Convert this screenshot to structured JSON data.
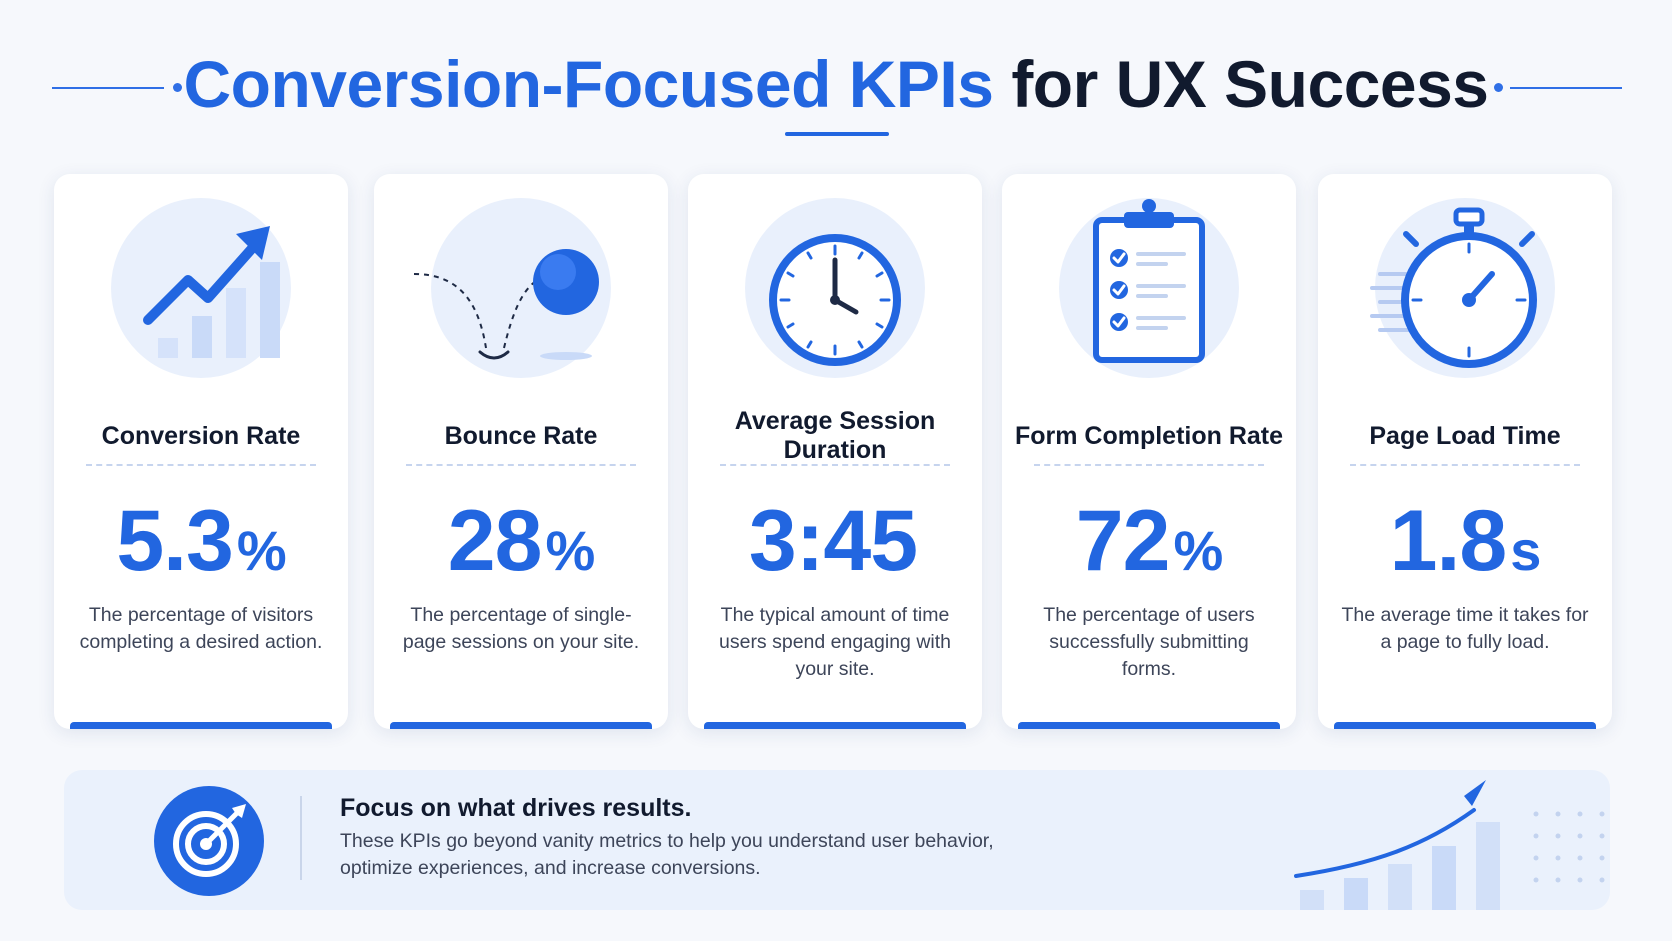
{
  "header": {
    "title_blue": "Conversion-Focused KPIs",
    "title_dark": "for UX Success"
  },
  "colors": {
    "accent": "#2266e0",
    "accent_light": "#e9f0fc",
    "background": "#f6f8fc",
    "text_dark": "#111a2e",
    "text_body": "#3d4559"
  },
  "kpis": [
    {
      "name": "Conversion Rate",
      "value": "5.3",
      "unit": "%",
      "description": "The percentage of visitors completing a desired action.",
      "icon": "trending-up-chart-icon"
    },
    {
      "name": "Bounce Rate",
      "value": "28",
      "unit": "%",
      "description": "The percentage of single-page sessions on your site.",
      "icon": "bouncing-ball-icon"
    },
    {
      "name": "Average Session Duration",
      "value": "3:45",
      "unit": "",
      "description": "The typical amount of time users spend engaging with your site.",
      "icon": "clock-icon"
    },
    {
      "name": "Form Completion Rate",
      "value": "72",
      "unit": "%",
      "description": "The percentage of users successfully submitting forms.",
      "icon": "clipboard-checklist-icon"
    },
    {
      "name": "Page Load Time",
      "value": "1.8",
      "unit": "s",
      "description": "The average time it takes for a page to fully load.",
      "icon": "stopwatch-icon"
    }
  ],
  "banner": {
    "heading": "Focus on what drives results.",
    "text": "These KPIs go beyond vanity metrics to help you understand user behavior, optimize experiences, and increase conversions.",
    "icon": "target-icon"
  }
}
